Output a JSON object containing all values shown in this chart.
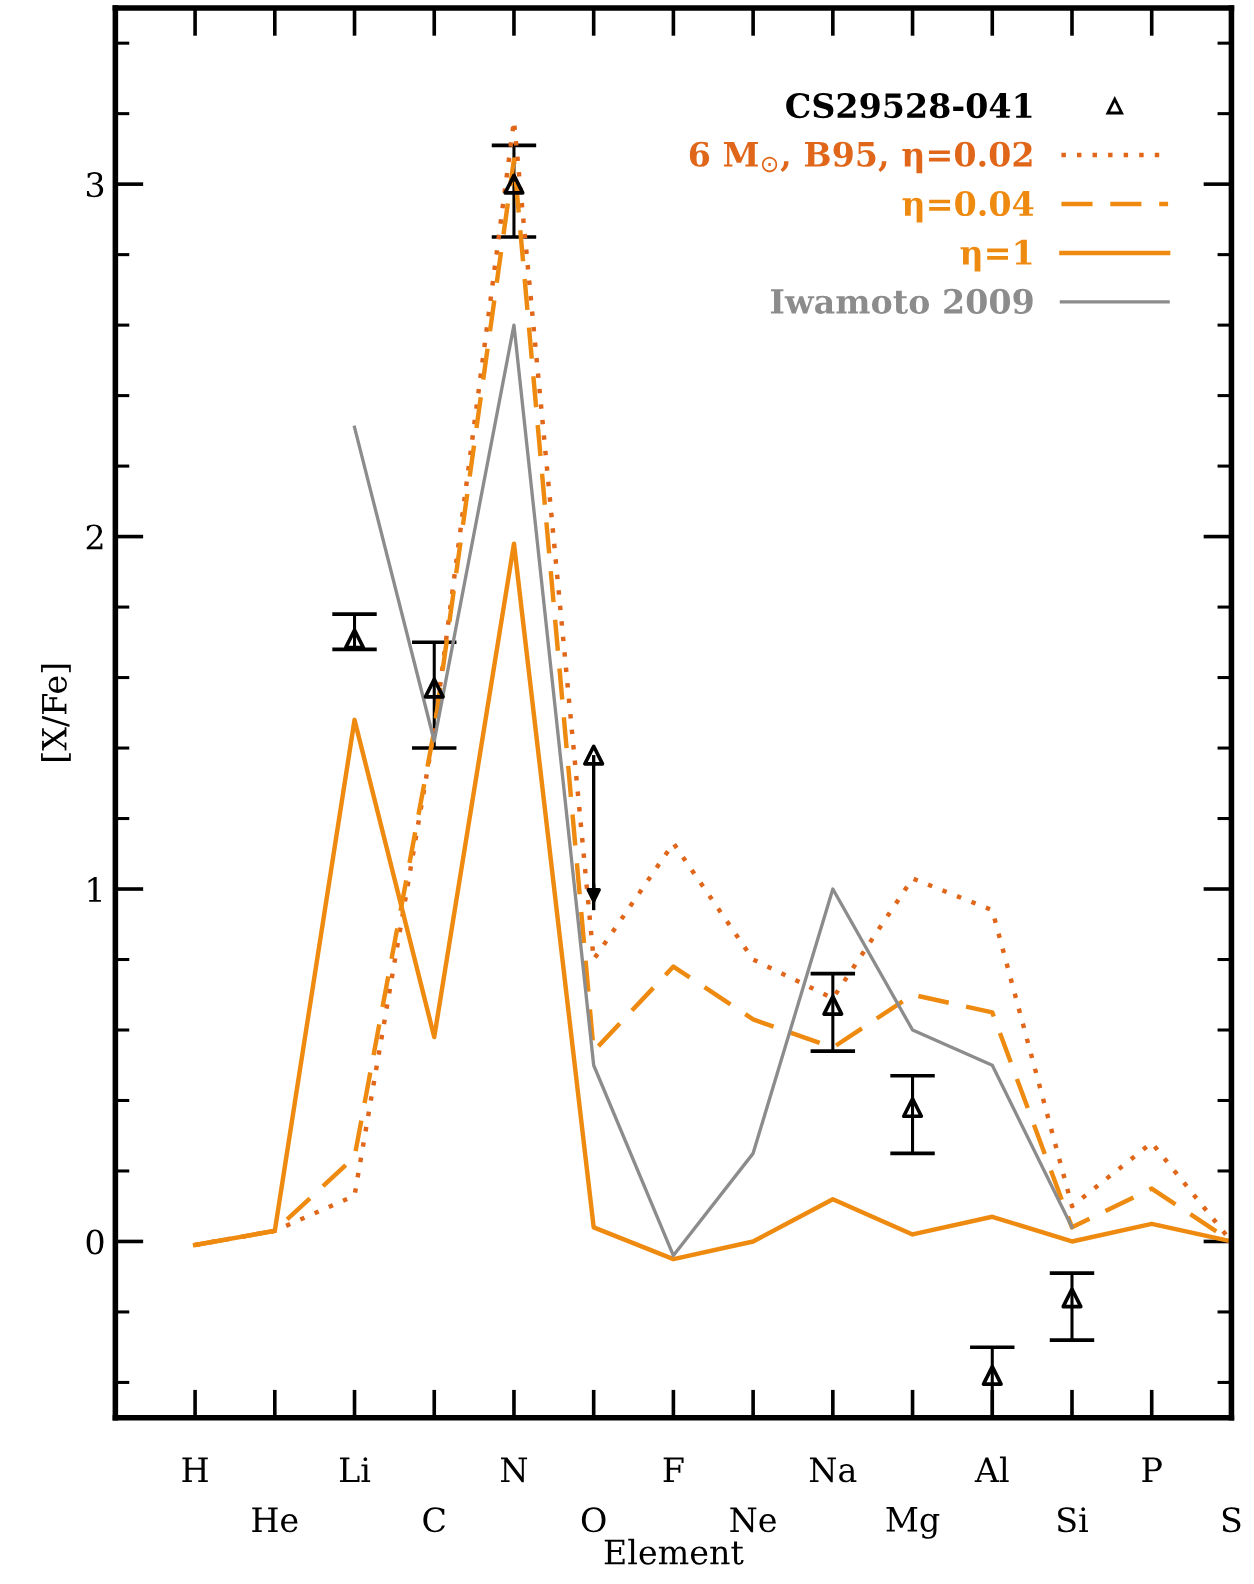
{
  "chart_data": {
    "type": "line",
    "xlabel": "Element",
    "ylabel": "[X/Fe]",
    "categories": [
      "H",
      "He",
      "Li",
      "C",
      "N",
      "O",
      "F",
      "Ne",
      "Na",
      "Mg",
      "Al",
      "Si",
      "P",
      "S"
    ],
    "ylim": [
      -0.5,
      3.5
    ],
    "yticks": [
      0,
      1,
      2,
      3
    ],
    "grid": false,
    "legend": "top right",
    "series": [
      {
        "name": "CS29528-041",
        "type": "scatter",
        "marker": "triangle",
        "color": "#000000",
        "values": [
          null,
          null,
          1.71,
          1.57,
          3.0,
          1.38,
          null,
          null,
          0.67,
          0.38,
          -0.38,
          -0.16,
          null,
          null
        ],
        "errors": [
          null,
          null,
          [
            1.68,
            1.78
          ],
          [
            1.4,
            1.7
          ],
          [
            2.85,
            3.11
          ],
          [
            0.94,
            1.38
          ],
          null,
          null,
          [
            0.54,
            0.76
          ],
          [
            0.25,
            0.47
          ],
          [
            -0.5,
            -0.3
          ],
          [
            -0.28,
            -0.09
          ],
          null,
          null
        ]
      },
      {
        "name": "6 M$_{⊙}$, B95, η=0.02",
        "line_style": "dotted",
        "color": "#e0661a",
        "values": [
          -0.01,
          0.03,
          0.13,
          1.45,
          3.18,
          0.8,
          1.13,
          0.8,
          0.69,
          1.03,
          0.94,
          0.1,
          0.28,
          0.0
        ]
      },
      {
        "name": "η=0.04",
        "line_style": "dashed",
        "color": "#ee8a10",
        "values": [
          -0.01,
          0.03,
          0.24,
          1.45,
          3.07,
          0.54,
          0.78,
          0.63,
          0.55,
          0.7,
          0.65,
          0.04,
          0.15,
          0.0
        ]
      },
      {
        "name": "η=1",
        "line_style": "solid",
        "color": "#ee8a10",
        "values": [
          -0.01,
          0.03,
          1.48,
          0.58,
          1.98,
          0.04,
          -0.05,
          0.0,
          0.12,
          0.02,
          0.07,
          0.0,
          0.05,
          0.0
        ]
      },
      {
        "name": "Iwamoto 2009",
        "line_style": "solid",
        "color": "#8c8c8c",
        "values": [
          null,
          null,
          2.31,
          1.42,
          2.6,
          0.5,
          -0.04,
          0.25,
          1.0,
          0.6,
          0.5,
          0.04,
          null,
          null
        ]
      }
    ]
  }
}
